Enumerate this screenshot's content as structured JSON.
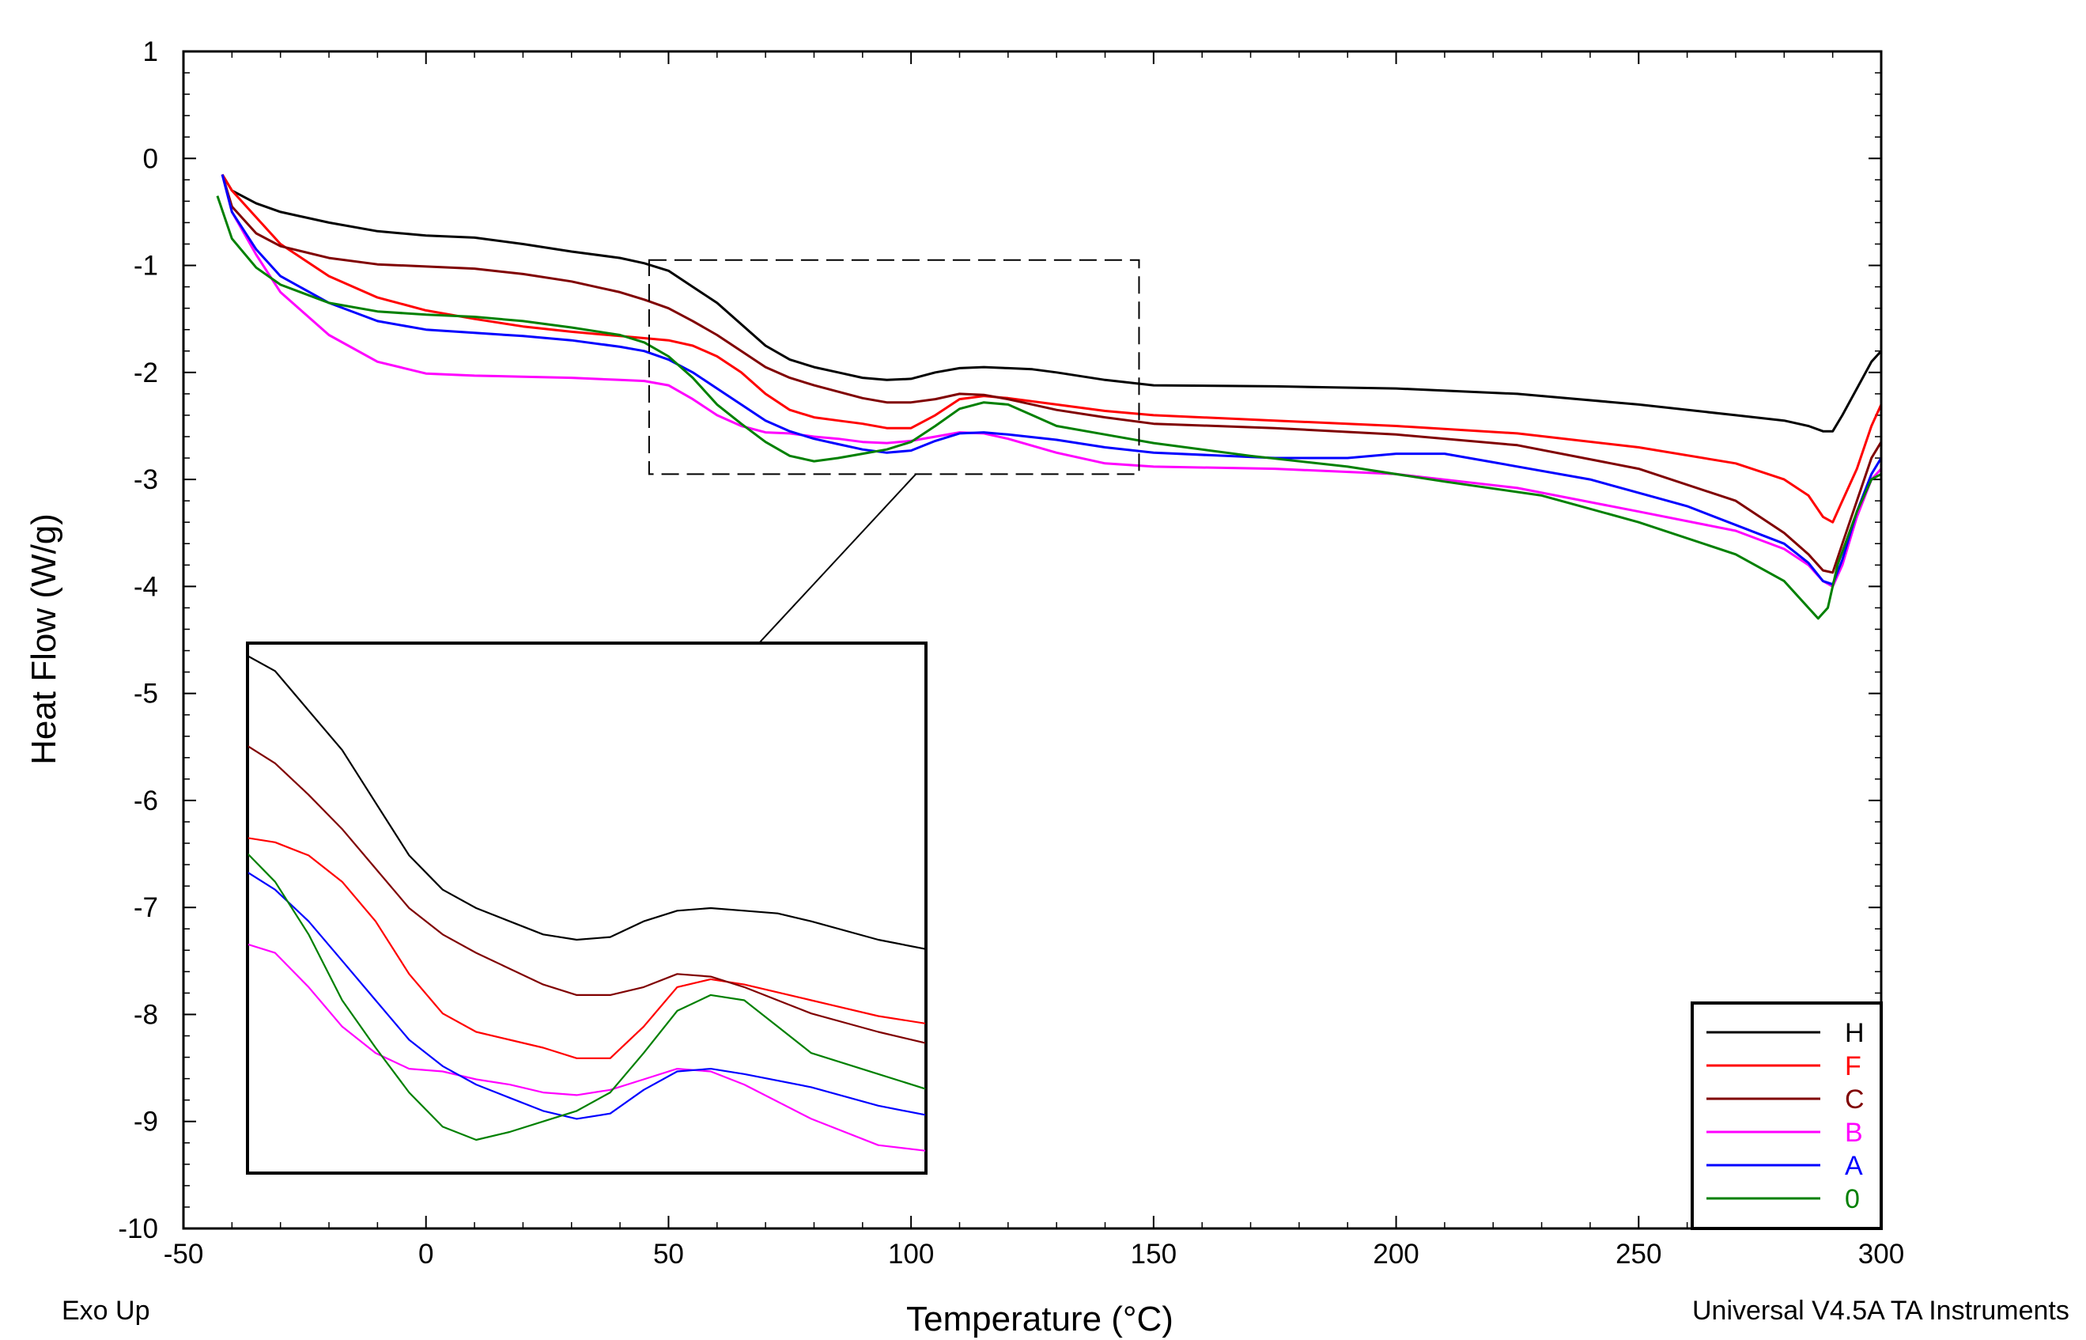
{
  "chart_data": {
    "type": "line",
    "title": "",
    "xlabel": "Temperature (°C)",
    "ylabel": "Heat Flow (W/g)",
    "xlim": [
      -50,
      300
    ],
    "ylim": [
      -10,
      1
    ],
    "x_ticks": [
      -50,
      0,
      50,
      100,
      150,
      200,
      250,
      300
    ],
    "y_ticks": [
      1,
      0,
      -1,
      -2,
      -3,
      -4,
      -5,
      -6,
      -7,
      -8,
      -9,
      -10
    ],
    "x_tick_labels": [
      "-50",
      "0",
      "50",
      "100",
      "150",
      "200",
      "250",
      "300"
    ],
    "y_tick_labels": [
      "1",
      "0",
      "-1",
      "-2",
      "-3",
      "-4",
      "-5",
      "-6",
      "-7",
      "-8",
      "-9",
      "-10"
    ],
    "legend_position": "bottom-right",
    "annotations": [
      {
        "type": "zoom-region",
        "x_range": [
          46,
          147
        ],
        "y_range": [
          -2.95,
          -0.95
        ],
        "inset_position": "lower-left"
      }
    ],
    "series": [
      {
        "name": "H",
        "color": "#000000",
        "points": [
          [
            -42,
            -0.15
          ],
          [
            -40,
            -0.3
          ],
          [
            -35,
            -0.42
          ],
          [
            -30,
            -0.5
          ],
          [
            -20,
            -0.6
          ],
          [
            -10,
            -0.68
          ],
          [
            0,
            -0.72
          ],
          [
            10,
            -0.74
          ],
          [
            20,
            -0.8
          ],
          [
            30,
            -0.87
          ],
          [
            40,
            -0.93
          ],
          [
            45,
            -0.98
          ],
          [
            50,
            -1.05
          ],
          [
            55,
            -1.2
          ],
          [
            60,
            -1.35
          ],
          [
            65,
            -1.55
          ],
          [
            70,
            -1.75
          ],
          [
            75,
            -1.88
          ],
          [
            80,
            -1.95
          ],
          [
            85,
            -2.0
          ],
          [
            90,
            -2.05
          ],
          [
            95,
            -2.07
          ],
          [
            100,
            -2.06
          ],
          [
            105,
            -2.0
          ],
          [
            110,
            -1.96
          ],
          [
            115,
            -1.95
          ],
          [
            120,
            -1.96
          ],
          [
            125,
            -1.97
          ],
          [
            130,
            -2.0
          ],
          [
            140,
            -2.07
          ],
          [
            150,
            -2.12
          ],
          [
            175,
            -2.13
          ],
          [
            200,
            -2.15
          ],
          [
            225,
            -2.2
          ],
          [
            250,
            -2.3
          ],
          [
            270,
            -2.4
          ],
          [
            280,
            -2.45
          ],
          [
            285,
            -2.5
          ],
          [
            288,
            -2.55
          ],
          [
            290,
            -2.55
          ],
          [
            292,
            -2.4
          ],
          [
            295,
            -2.15
          ],
          [
            298,
            -1.9
          ],
          [
            300,
            -1.8
          ]
        ]
      },
      {
        "name": "F",
        "color": "#ff0000",
        "points": [
          [
            -42,
            -0.15
          ],
          [
            -40,
            -0.3
          ],
          [
            -35,
            -0.55
          ],
          [
            -30,
            -0.8
          ],
          [
            -20,
            -1.1
          ],
          [
            -10,
            -1.3
          ],
          [
            0,
            -1.42
          ],
          [
            10,
            -1.5
          ],
          [
            20,
            -1.57
          ],
          [
            30,
            -1.62
          ],
          [
            40,
            -1.66
          ],
          [
            45,
            -1.68
          ],
          [
            50,
            -1.7
          ],
          [
            55,
            -1.75
          ],
          [
            60,
            -1.85
          ],
          [
            65,
            -2.0
          ],
          [
            70,
            -2.2
          ],
          [
            75,
            -2.35
          ],
          [
            80,
            -2.42
          ],
          [
            85,
            -2.45
          ],
          [
            90,
            -2.48
          ],
          [
            95,
            -2.52
          ],
          [
            100,
            -2.52
          ],
          [
            105,
            -2.4
          ],
          [
            110,
            -2.25
          ],
          [
            115,
            -2.22
          ],
          [
            120,
            -2.24
          ],
          [
            130,
            -2.3
          ],
          [
            140,
            -2.36
          ],
          [
            150,
            -2.4
          ],
          [
            175,
            -2.45
          ],
          [
            200,
            -2.5
          ],
          [
            225,
            -2.57
          ],
          [
            250,
            -2.7
          ],
          [
            270,
            -2.85
          ],
          [
            280,
            -3.0
          ],
          [
            285,
            -3.15
          ],
          [
            288,
            -3.35
          ],
          [
            290,
            -3.4
          ],
          [
            292,
            -3.2
          ],
          [
            295,
            -2.9
          ],
          [
            298,
            -2.5
          ],
          [
            300,
            -2.3
          ]
        ]
      },
      {
        "name": "C",
        "color": "#800000",
        "points": [
          [
            -42,
            -0.15
          ],
          [
            -40,
            -0.45
          ],
          [
            -35,
            -0.7
          ],
          [
            -30,
            -0.82
          ],
          [
            -20,
            -0.93
          ],
          [
            -10,
            -0.99
          ],
          [
            0,
            -1.01
          ],
          [
            10,
            -1.03
          ],
          [
            20,
            -1.08
          ],
          [
            30,
            -1.15
          ],
          [
            40,
            -1.25
          ],
          [
            45,
            -1.32
          ],
          [
            50,
            -1.4
          ],
          [
            55,
            -1.52
          ],
          [
            60,
            -1.65
          ],
          [
            65,
            -1.8
          ],
          [
            70,
            -1.95
          ],
          [
            75,
            -2.05
          ],
          [
            80,
            -2.12
          ],
          [
            85,
            -2.18
          ],
          [
            90,
            -2.24
          ],
          [
            95,
            -2.28
          ],
          [
            100,
            -2.28
          ],
          [
            105,
            -2.25
          ],
          [
            110,
            -2.2
          ],
          [
            115,
            -2.21
          ],
          [
            120,
            -2.25
          ],
          [
            130,
            -2.35
          ],
          [
            140,
            -2.42
          ],
          [
            150,
            -2.48
          ],
          [
            175,
            -2.52
          ],
          [
            200,
            -2.58
          ],
          [
            225,
            -2.68
          ],
          [
            250,
            -2.9
          ],
          [
            270,
            -3.2
          ],
          [
            280,
            -3.5
          ],
          [
            285,
            -3.7
          ],
          [
            288,
            -3.85
          ],
          [
            290,
            -3.87
          ],
          [
            292,
            -3.6
          ],
          [
            295,
            -3.2
          ],
          [
            298,
            -2.8
          ],
          [
            300,
            -2.65
          ]
        ]
      },
      {
        "name": "B",
        "color": "#ff00ff",
        "points": [
          [
            -42,
            -0.15
          ],
          [
            -40,
            -0.5
          ],
          [
            -35,
            -0.9
          ],
          [
            -30,
            -1.25
          ],
          [
            -20,
            -1.65
          ],
          [
            -10,
            -1.9
          ],
          [
            0,
            -2.01
          ],
          [
            10,
            -2.03
          ],
          [
            20,
            -2.04
          ],
          [
            30,
            -2.05
          ],
          [
            40,
            -2.07
          ],
          [
            45,
            -2.08
          ],
          [
            50,
            -2.12
          ],
          [
            55,
            -2.25
          ],
          [
            60,
            -2.4
          ],
          [
            65,
            -2.5
          ],
          [
            70,
            -2.56
          ],
          [
            75,
            -2.57
          ],
          [
            80,
            -2.6
          ],
          [
            85,
            -2.62
          ],
          [
            90,
            -2.65
          ],
          [
            95,
            -2.66
          ],
          [
            100,
            -2.64
          ],
          [
            105,
            -2.6
          ],
          [
            110,
            -2.56
          ],
          [
            115,
            -2.57
          ],
          [
            120,
            -2.62
          ],
          [
            130,
            -2.75
          ],
          [
            140,
            -2.85
          ],
          [
            150,
            -2.88
          ],
          [
            175,
            -2.9
          ],
          [
            200,
            -2.95
          ],
          [
            225,
            -3.08
          ],
          [
            250,
            -3.3
          ],
          [
            270,
            -3.48
          ],
          [
            280,
            -3.65
          ],
          [
            285,
            -3.8
          ],
          [
            288,
            -3.95
          ],
          [
            290,
            -4.0
          ],
          [
            292,
            -3.8
          ],
          [
            295,
            -3.35
          ],
          [
            298,
            -3.0
          ],
          [
            300,
            -2.9
          ]
        ]
      },
      {
        "name": "A",
        "color": "#0000ff",
        "points": [
          [
            -42,
            -0.15
          ],
          [
            -40,
            -0.5
          ],
          [
            -35,
            -0.85
          ],
          [
            -30,
            -1.1
          ],
          [
            -20,
            -1.35
          ],
          [
            -10,
            -1.52
          ],
          [
            0,
            -1.6
          ],
          [
            10,
            -1.63
          ],
          [
            20,
            -1.66
          ],
          [
            30,
            -1.7
          ],
          [
            40,
            -1.76
          ],
          [
            45,
            -1.8
          ],
          [
            50,
            -1.88
          ],
          [
            55,
            -2.0
          ],
          [
            60,
            -2.15
          ],
          [
            65,
            -2.3
          ],
          [
            70,
            -2.45
          ],
          [
            75,
            -2.55
          ],
          [
            80,
            -2.62
          ],
          [
            85,
            -2.67
          ],
          [
            90,
            -2.72
          ],
          [
            95,
            -2.75
          ],
          [
            100,
            -2.73
          ],
          [
            105,
            -2.64
          ],
          [
            110,
            -2.57
          ],
          [
            115,
            -2.56
          ],
          [
            120,
            -2.58
          ],
          [
            130,
            -2.63
          ],
          [
            140,
            -2.7
          ],
          [
            150,
            -2.75
          ],
          [
            175,
            -2.8
          ],
          [
            190,
            -2.8
          ],
          [
            200,
            -2.76
          ],
          [
            210,
            -2.76
          ],
          [
            220,
            -2.84
          ],
          [
            240,
            -3.0
          ],
          [
            260,
            -3.25
          ],
          [
            280,
            -3.6
          ],
          [
            285,
            -3.78
          ],
          [
            288,
            -3.95
          ],
          [
            290,
            -3.98
          ],
          [
            292,
            -3.75
          ],
          [
            295,
            -3.3
          ],
          [
            298,
            -2.95
          ],
          [
            300,
            -2.8
          ]
        ]
      },
      {
        "name": "0",
        "color": "#008000",
        "points": [
          [
            -43,
            -0.35
          ],
          [
            -40,
            -0.75
          ],
          [
            -35,
            -1.02
          ],
          [
            -30,
            -1.18
          ],
          [
            -20,
            -1.35
          ],
          [
            -10,
            -1.43
          ],
          [
            0,
            -1.46
          ],
          [
            10,
            -1.48
          ],
          [
            20,
            -1.52
          ],
          [
            30,
            -1.58
          ],
          [
            40,
            -1.65
          ],
          [
            45,
            -1.72
          ],
          [
            50,
            -1.85
          ],
          [
            55,
            -2.05
          ],
          [
            60,
            -2.3
          ],
          [
            65,
            -2.48
          ],
          [
            70,
            -2.65
          ],
          [
            75,
            -2.78
          ],
          [
            80,
            -2.83
          ],
          [
            85,
            -2.8
          ],
          [
            90,
            -2.76
          ],
          [
            95,
            -2.72
          ],
          [
            100,
            -2.65
          ],
          [
            105,
            -2.5
          ],
          [
            110,
            -2.34
          ],
          [
            115,
            -2.28
          ],
          [
            120,
            -2.3
          ],
          [
            125,
            -2.4
          ],
          [
            130,
            -2.5
          ],
          [
            140,
            -2.58
          ],
          [
            150,
            -2.66
          ],
          [
            170,
            -2.78
          ],
          [
            190,
            -2.88
          ],
          [
            210,
            -3.02
          ],
          [
            230,
            -3.15
          ],
          [
            250,
            -3.4
          ],
          [
            270,
            -3.7
          ],
          [
            280,
            -3.95
          ],
          [
            285,
            -4.2
          ],
          [
            287,
            -4.3
          ],
          [
            289,
            -4.2
          ],
          [
            291,
            -3.8
          ],
          [
            295,
            -3.3
          ],
          [
            298,
            -3.0
          ],
          [
            300,
            -2.95
          ]
        ]
      }
    ]
  },
  "footer": {
    "left": "Exo Up",
    "right": "Universal V4.5A TA Instruments"
  }
}
